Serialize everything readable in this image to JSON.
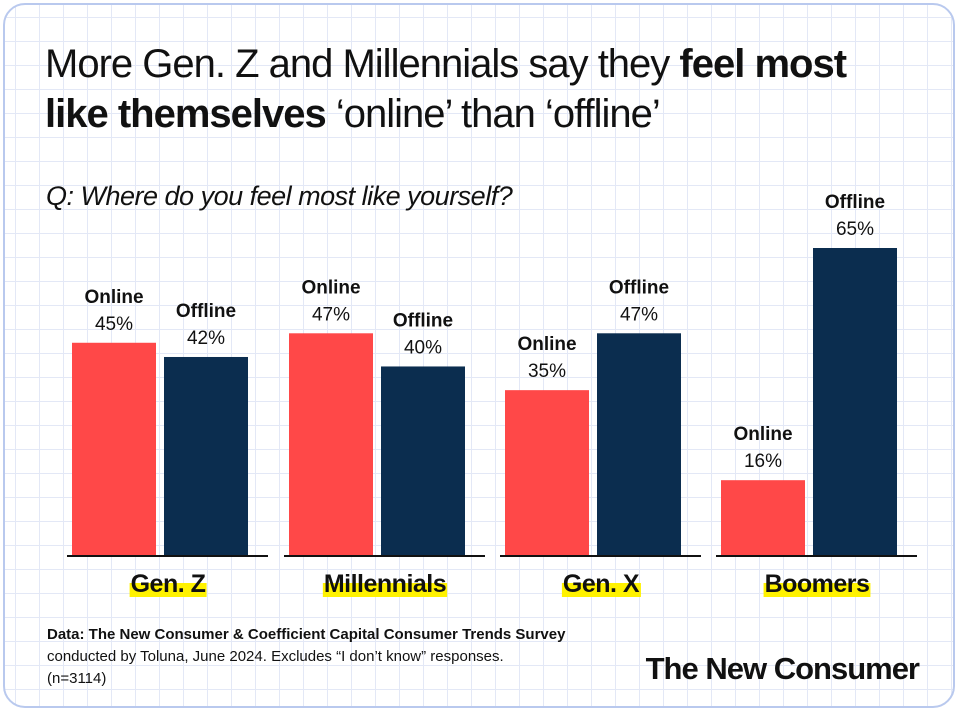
{
  "title": {
    "part1": "More Gen. Z and Millennials say they ",
    "bold1": "feel most like themselves",
    "part2": " ‘online’ than ‘offline’"
  },
  "question": "Q: Where do you feel most like yourself?",
  "footnote": {
    "bold": "Data: The New Consumer & Coefficient Capital Consumer Trends Survey",
    "rest": " conducted by Toluna, June 2024. Excludes “I don’t know” responses. (n=3114)"
  },
  "brand": "The New Consumer",
  "colors": {
    "online": "#ff4848",
    "offline": "#0b2d4f",
    "highlight": "#fff200",
    "baseline": "#111111"
  },
  "chart_data": {
    "type": "bar",
    "title": "",
    "xlabel": "",
    "ylabel": "",
    "ylim": [
      0,
      65
    ],
    "grid": false,
    "categories": [
      "Gen. Z",
      "Millennials",
      "Gen. X",
      "Boomers"
    ],
    "series": [
      {
        "name": "Online",
        "values": [
          45,
          47,
          35,
          16
        ],
        "labels": [
          "45%",
          "47%",
          "35%",
          "16%"
        ]
      },
      {
        "name": "Offline",
        "values": [
          42,
          40,
          47,
          65
        ],
        "labels": [
          "42%",
          "40%",
          "47%",
          "65%"
        ]
      }
    ]
  }
}
